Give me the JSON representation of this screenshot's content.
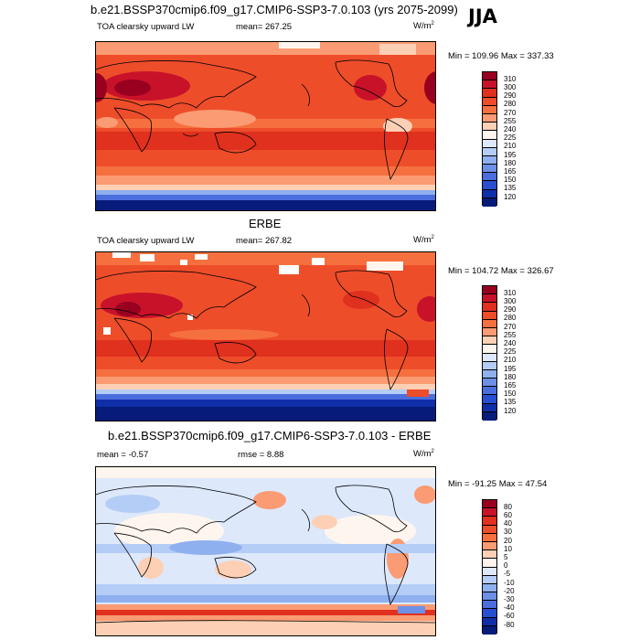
{
  "season": "JJA",
  "panels": [
    {
      "title": "b.e21.BSSP370cmip6.f09_g17.CMIP6-SSP3-7.0.103 (yrs 2075-2099)",
      "left_label": "TOA clearsky upward LW",
      "center_label": "mean= 267.25",
      "units": "W/m",
      "units_sup": "2",
      "minmax": "Min = 109.96 Max = 337.33",
      "levels": [
        "310",
        "300",
        "290",
        "280",
        "270",
        "255",
        "240",
        "225",
        "210",
        "195",
        "180",
        "165",
        "150",
        "135",
        "120"
      ],
      "colors": [
        "#99001f",
        "#c8122a",
        "#e0301e",
        "#ee4d2a",
        "#f6703f",
        "#fb9b73",
        "#fdd0b5",
        "#fef6ee",
        "#dde8fb",
        "#b4cdf6",
        "#8fb0ef",
        "#6d90e6",
        "#4b6ede",
        "#284fcf",
        "#0f2fa8",
        "#061b7a"
      ]
    },
    {
      "title": "ERBE",
      "left_label": "TOA clearsky upward LW",
      "center_label": "mean= 267.82",
      "units": "W/m",
      "units_sup": "2",
      "minmax": "Min = 104.72 Max = 326.67",
      "levels": [
        "310",
        "300",
        "290",
        "280",
        "270",
        "255",
        "240",
        "225",
        "210",
        "195",
        "180",
        "165",
        "150",
        "135",
        "120"
      ],
      "colors": [
        "#99001f",
        "#c8122a",
        "#e0301e",
        "#ee4d2a",
        "#f6703f",
        "#fb9b73",
        "#fdd0b5",
        "#fef6ee",
        "#dde8fb",
        "#b4cdf6",
        "#8fb0ef",
        "#6d90e6",
        "#4b6ede",
        "#284fcf",
        "#0f2fa8",
        "#061b7a"
      ]
    },
    {
      "title": "b.e21.BSSP370cmip6.f09_g17.CMIP6-SSP3-7.0.103 - ERBE",
      "left_label": "mean =  -0.57",
      "center_label": "rmse =   8.88",
      "units": "W/m",
      "units_sup": "2",
      "minmax": "Min = -91.25 Max =  47.54",
      "levels": [
        "80",
        "60",
        "40",
        "30",
        "20",
        "10",
        "5",
        "0",
        "-5",
        "-10",
        "-20",
        "-30",
        "-40",
        "-60",
        "-80"
      ],
      "colors": [
        "#99001f",
        "#c8122a",
        "#e0301e",
        "#ee4d2a",
        "#f6703f",
        "#fb9b73",
        "#fdd0b5",
        "#fef6ee",
        "#dde8fb",
        "#b4cdf6",
        "#8fb0ef",
        "#6d90e6",
        "#4b6ede",
        "#284fcf",
        "#0f2fa8",
        "#061b7a"
      ]
    }
  ]
}
